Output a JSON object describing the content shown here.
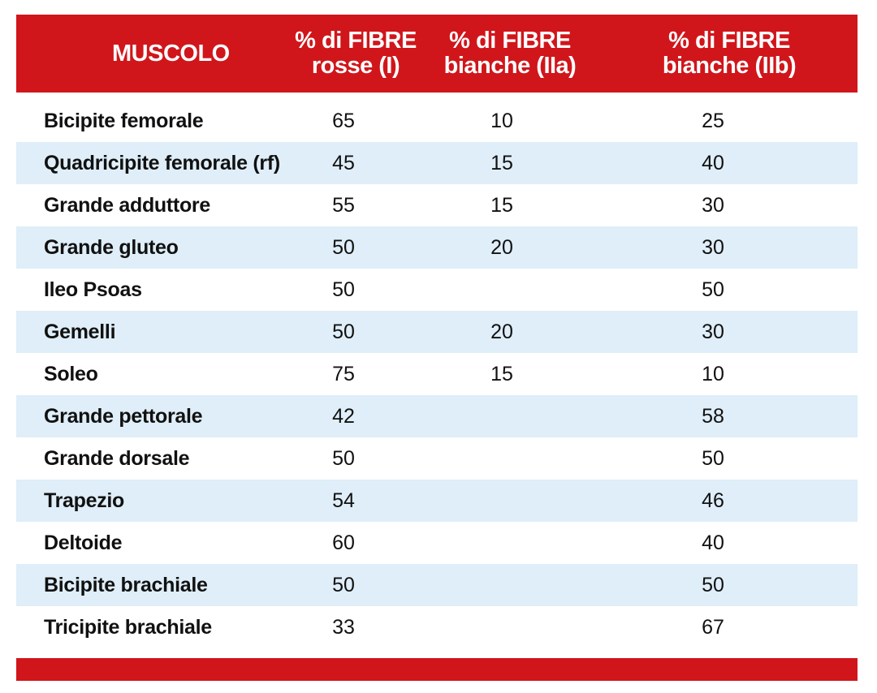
{
  "header": {
    "col1": "MUSCOLO",
    "col2_line1": "% di FIBRE",
    "col2_line2": "rosse (I)",
    "col3_line1": "% di FIBRE",
    "col3_line2": "bianche (IIa)",
    "col4_line1": "% di FIBRE",
    "col4_line2": "bianche (IIb)"
  },
  "rows": [
    {
      "name": "Bicipite femorale",
      "rosse": "65",
      "iia": "10",
      "iib": "25"
    },
    {
      "name": "Quadricipite femorale (rf)",
      "rosse": "45",
      "iia": "15",
      "iib": "40"
    },
    {
      "name": "Grande adduttore",
      "rosse": "55",
      "iia": "15",
      "iib": "30"
    },
    {
      "name": "Grande gluteo",
      "rosse": "50",
      "iia": "20",
      "iib": "30"
    },
    {
      "name": "Ileo Psoas",
      "rosse": "50",
      "iia": "",
      "iib": "50"
    },
    {
      "name": "Gemelli",
      "rosse": "50",
      "iia": "20",
      "iib": "30"
    },
    {
      "name": "Soleo",
      "rosse": "75",
      "iia": "15",
      "iib": "10"
    },
    {
      "name": "Grande pettorale",
      "rosse": "42",
      "iia": "",
      "iib": "58"
    },
    {
      "name": "Grande dorsale",
      "rosse": "50",
      "iia": "",
      "iib": "50"
    },
    {
      "name": "Trapezio",
      "rosse": "54",
      "iia": "",
      "iib": "46"
    },
    {
      "name": "Deltoide",
      "rosse": "60",
      "iia": "",
      "iib": "40"
    },
    {
      "name": "Bicipite brachiale",
      "rosse": "50",
      "iia": "",
      "iib": "50"
    },
    {
      "name": "Tricipite brachiale",
      "rosse": "33",
      "iia": "",
      "iib": "67"
    }
  ],
  "colors": {
    "header_bg": "#d0161b",
    "alt_row_bg": "#dfeef8",
    "text": "#111111"
  }
}
